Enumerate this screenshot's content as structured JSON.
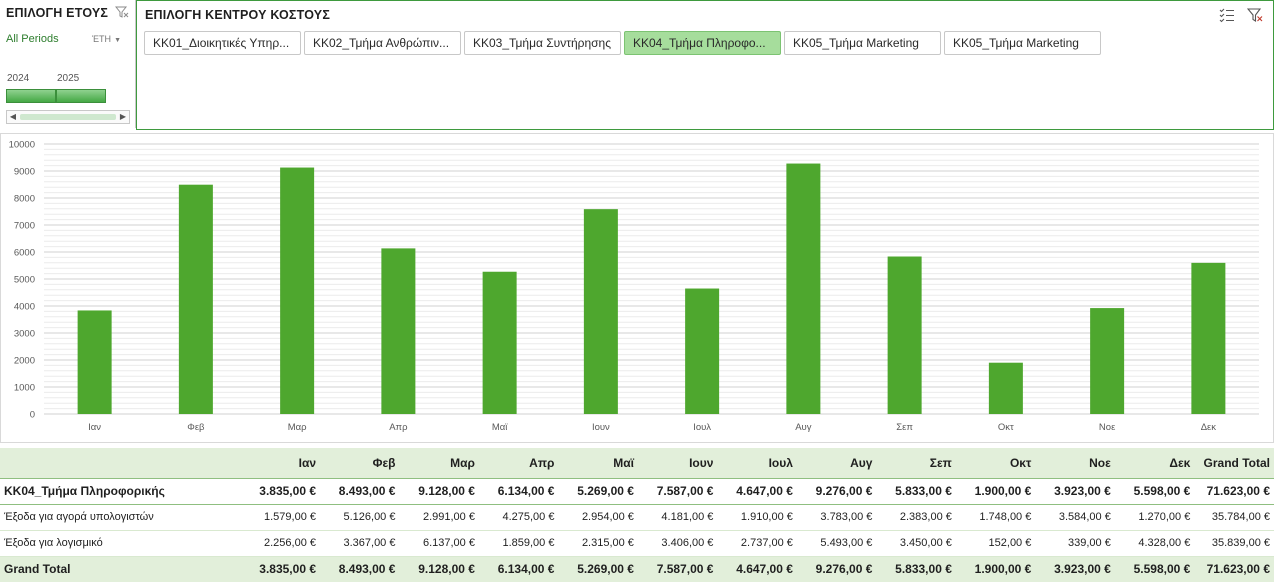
{
  "year_slicer": {
    "title": "ΕΠΙΛΟΓΗ ΕΤΟΥΣ",
    "periods_label": "All Periods",
    "period_level": "ΈΤΗ",
    "years": [
      "2024",
      "2025"
    ]
  },
  "cost_center_slicer": {
    "title": "ΕΠΙΛΟΓΗ ΚΕΝΤΡΟΥ ΚΟΣΤΟΥΣ",
    "items": [
      {
        "label": "ΚΚ01_Διοικητικές Υπηρ...",
        "selected": false
      },
      {
        "label": "ΚΚ02_Τμήμα Ανθρώπιν...",
        "selected": false
      },
      {
        "label": "ΚΚ03_Τμήμα Συντήρησης",
        "selected": false
      },
      {
        "label": "ΚΚ04_Τμήμα Πληροφο...",
        "selected": true
      },
      {
        "label": "ΚΚ05_Τμήμα Marketing",
        "selected": false
      },
      {
        "label": "ΚΚ05_Τμήμα Marketing",
        "selected": false
      }
    ]
  },
  "chart_data": {
    "type": "bar",
    "categories": [
      "Ιαν",
      "Φεβ",
      "Μαρ",
      "Απρ",
      "Μαϊ",
      "Ιουν",
      "Ιουλ",
      "Αυγ",
      "Σεπ",
      "Οκτ",
      "Νοε",
      "Δεκ"
    ],
    "values": [
      3835,
      8493,
      9128,
      6134,
      5269,
      7587,
      4647,
      9276,
      5833,
      1900,
      3923,
      5598
    ],
    "yticks": [
      "0",
      "1000",
      "2000",
      "3000",
      "4000",
      "5000",
      "6000",
      "7000",
      "8000",
      "9000",
      "10000"
    ],
    "ylim": [
      0,
      10000
    ],
    "title": "",
    "xlabel": "",
    "ylabel": "",
    "bar_color": "#4ea72e",
    "grid": true,
    "legend": "none"
  },
  "pivot": {
    "headers": [
      "",
      "Ιαν",
      "Φεβ",
      "Μαρ",
      "Απρ",
      "Μαϊ",
      "Ιουν",
      "Ιουλ",
      "Αυγ",
      "Σεπ",
      "Οκτ",
      "Νοε",
      "Δεκ",
      "Grand Total"
    ],
    "group": {
      "label": "ΚΚ04_Τμήμα Πληροφορικής",
      "values": [
        "3.835,00 €",
        "8.493,00 €",
        "9.128,00 €",
        "6.134,00 €",
        "5.269,00 €",
        "7.587,00 €",
        "4.647,00 €",
        "9.276,00 €",
        "5.833,00 €",
        "1.900,00 €",
        "3.923,00 €",
        "5.598,00 €",
        "71.623,00 €"
      ]
    },
    "rows": [
      {
        "label": "Έξοδα για αγορά υπολογιστών",
        "values": [
          "1.579,00 €",
          "5.126,00 €",
          "2.991,00 €",
          "4.275,00 €",
          "2.954,00 €",
          "4.181,00 €",
          "1.910,00 €",
          "3.783,00 €",
          "2.383,00 €",
          "1.748,00 €",
          "3.584,00 €",
          "1.270,00 €",
          "35.784,00 €"
        ]
      },
      {
        "label": "Έξοδα για λογισμικό",
        "values": [
          "2.256,00 €",
          "3.367,00 €",
          "6.137,00 €",
          "1.859,00 €",
          "2.315,00 €",
          "3.406,00 €",
          "2.737,00 €",
          "5.493,00 €",
          "3.450,00 €",
          "152,00 €",
          "339,00 €",
          "4.328,00 €",
          "35.839,00 €"
        ]
      }
    ],
    "total": {
      "label": "Grand Total",
      "values": [
        "3.835,00 €",
        "8.493,00 €",
        "9.128,00 €",
        "6.134,00 €",
        "5.269,00 €",
        "7.587,00 €",
        "4.647,00 €",
        "9.276,00 €",
        "5.833,00 €",
        "1.900,00 €",
        "3.923,00 €",
        "5.598,00 €",
        "71.623,00 €"
      ]
    }
  }
}
